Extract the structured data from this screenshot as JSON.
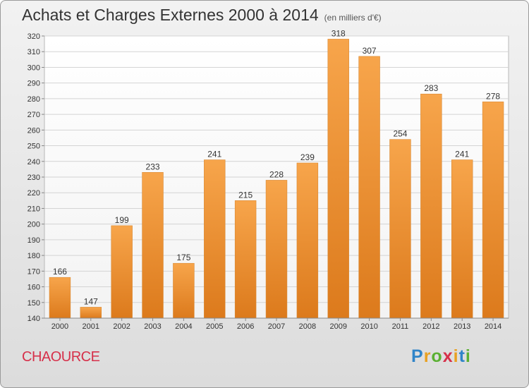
{
  "header": {
    "title": "Achats et Charges Externes 2000 à 2014",
    "subtitle": "(en milliers d'€)"
  },
  "commune_name": "CHAOURCE",
  "logo": {
    "letters": [
      "P",
      "r",
      "o",
      "x",
      "i",
      "t",
      "i"
    ],
    "colors": [
      "#2f84c8",
      "#e8a020",
      "#5bb033",
      "#d6304a",
      "#e8a020",
      "#2f84c8",
      "#5bb033"
    ]
  },
  "chart_data": {
    "type": "bar",
    "categories": [
      "2000",
      "2001",
      "2002",
      "2003",
      "2004",
      "2005",
      "2006",
      "2007",
      "2008",
      "2009",
      "2010",
      "2011",
      "2012",
      "2013",
      "2014"
    ],
    "values": [
      166,
      147,
      199,
      233,
      175,
      241,
      215,
      228,
      239,
      318,
      307,
      254,
      283,
      241,
      278
    ],
    "ylim": [
      140,
      320
    ],
    "yticks": [
      140,
      150,
      160,
      170,
      180,
      190,
      200,
      210,
      220,
      230,
      240,
      250,
      260,
      270,
      280,
      290,
      300,
      310,
      320
    ],
    "grid": true,
    "bar_color": "#f0922e",
    "data_labels": true
  }
}
